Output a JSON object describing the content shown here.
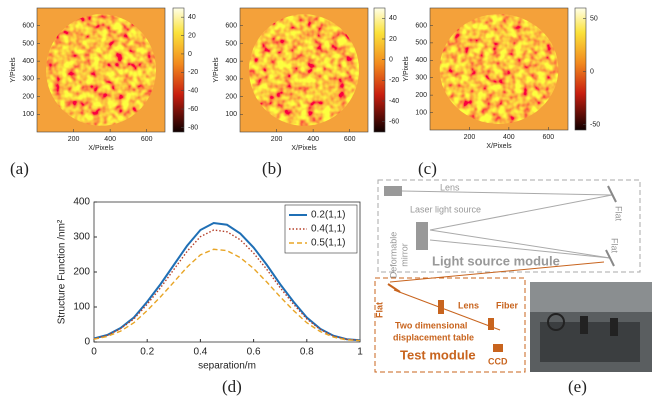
{
  "chart_data": [
    {
      "type": "heatmap",
      "xlabel": "X/Pixels",
      "ylabel": "Y/Pixels",
      "xlim": [
        0,
        700
      ],
      "xticks": [
        200,
        400,
        600
      ],
      "ylim": [
        0,
        700
      ],
      "yticks": [
        100,
        200,
        300,
        400,
        500,
        600
      ],
      "colorbar_lim": [
        -85,
        50
      ],
      "colorbar_ticks": [
        40,
        20,
        0,
        -20,
        -40,
        -60,
        -80
      ]
    },
    {
      "type": "heatmap",
      "xlabel": "X/Pixels",
      "ylabel": "Y/Pixels",
      "xlim": [
        0,
        700
      ],
      "xticks": [
        200,
        400,
        600
      ],
      "ylim": [
        0,
        700
      ],
      "yticks": [
        100,
        200,
        300,
        400,
        500,
        600
      ],
      "colorbar_lim": [
        -70,
        50
      ],
      "colorbar_ticks": [
        40,
        20,
        0,
        -20,
        -40,
        -60
      ]
    },
    {
      "type": "heatmap",
      "xlabel": "X/Pixels",
      "ylabel": "Y/Pixels",
      "xlim": [
        0,
        700
      ],
      "xticks": [
        200,
        400,
        600
      ],
      "ylim": [
        0,
        700
      ],
      "yticks": [
        100,
        200,
        300,
        400,
        500,
        600
      ],
      "colorbar_lim": [
        -55,
        60
      ],
      "colorbar_ticks": [
        50,
        0,
        -50
      ]
    },
    {
      "type": "line",
      "xlabel": "separation/m",
      "ylabel": "Structure Function /nm²",
      "x": [
        0,
        0.05,
        0.1,
        0.15,
        0.2,
        0.25,
        0.3,
        0.35,
        0.4,
        0.45,
        0.5,
        0.55,
        0.6,
        0.65,
        0.7,
        0.75,
        0.8,
        0.85,
        0.9,
        0.95,
        1
      ],
      "series": [
        {
          "name": "0.2(1,1)",
          "color": "#1f6fb5",
          "dash": "solid",
          "values": [
            10,
            20,
            40,
            70,
            115,
            165,
            220,
            275,
            320,
            340,
            335,
            310,
            270,
            220,
            165,
            115,
            70,
            38,
            18,
            8,
            5
          ]
        },
        {
          "name": "0.4(1,1)",
          "color": "#b5402a",
          "dash": "dotted",
          "values": [
            9,
            19,
            38,
            66,
            108,
            155,
            207,
            259,
            301,
            320,
            315,
            292,
            254,
            207,
            155,
            108,
            66,
            36,
            17,
            8,
            5
          ]
        },
        {
          "name": "0.5(1,1)",
          "color": "#e8a526",
          "dash": "dashed",
          "values": [
            8,
            16,
            31,
            55,
            90,
            129,
            171,
            214,
            249,
            265,
            261,
            241,
            210,
            171,
            129,
            90,
            55,
            30,
            14,
            6,
            4
          ]
        }
      ],
      "xlim": [
        0,
        1
      ],
      "xticks": [
        0,
        0.2,
        0.4,
        0.6,
        0.8,
        1
      ],
      "ylim": [
        0,
        400
      ],
      "yticks": [
        0,
        100,
        200,
        300,
        400
      ],
      "legend": "upper right"
    }
  ],
  "panels": [
    "(a)",
    "(b)",
    "(c)",
    "(d)",
    "(e)"
  ],
  "diagram": {
    "lens_top": "Lens",
    "flat_top": "Flat",
    "laser": "Laser light source",
    "deformable_1": "Deformable",
    "deformable_2": "mirror",
    "flat_mid": "Flat",
    "light_module": "Light source module",
    "flat_left": "Flat",
    "lens_bottom": "Lens",
    "fiber": "Fiber",
    "table_1": "Two dimensional",
    "table_2": "displacement table",
    "test_module": "Test module",
    "ccd": "CCD"
  }
}
